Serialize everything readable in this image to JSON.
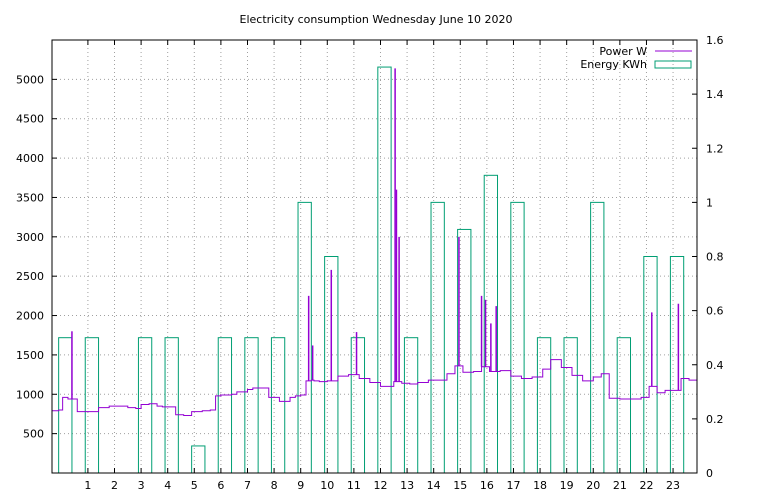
{
  "chart_data": {
    "type": "line",
    "title": "Electricity consumption Wednesday June 10 2020",
    "xlabel": "",
    "ylabel": "",
    "xlim": [
      -0.35,
      23.9
    ],
    "ylim": [
      0,
      5500
    ],
    "y2lim": [
      0,
      1.6
    ],
    "x_ticks": [
      1,
      2,
      3,
      4,
      5,
      6,
      7,
      8,
      9,
      10,
      11,
      12,
      13,
      14,
      15,
      16,
      17,
      18,
      19,
      20,
      21,
      22,
      23
    ],
    "y_ticks": [
      500,
      1000,
      1500,
      2000,
      2500,
      3000,
      3500,
      4000,
      4500,
      5000
    ],
    "y2_ticks": [
      0,
      0.2,
      0.4,
      0.6,
      0.8,
      1,
      1.2,
      1.4,
      1.6
    ],
    "y2_tick_labels": [
      "0",
      "0.2",
      "0.4",
      "0.6",
      "0.8",
      "1",
      "1.2",
      "1.4",
      "1.6"
    ],
    "grid": true,
    "legend_position": "top-right",
    "colors": {
      "power": "#9400d3",
      "energy": "#009e73"
    },
    "series": [
      {
        "name": "Power W",
        "axis": "left",
        "style": "step",
        "x": [
          -0.35,
          -0.1,
          0.05,
          0.25,
          0.6,
          1.0,
          1.4,
          1.8,
          2.2,
          2.5,
          2.8,
          3.0,
          3.3,
          3.6,
          3.8,
          4.0,
          4.3,
          4.6,
          4.9,
          5.1,
          5.3,
          5.6,
          5.8,
          6.0,
          6.2,
          6.4,
          6.6,
          6.8,
          7.0,
          7.2,
          7.4,
          7.6,
          7.8,
          8.0,
          8.2,
          8.4,
          8.6,
          8.8,
          9.0,
          9.2,
          9.4,
          9.5,
          9.7,
          10.0,
          10.4,
          10.8,
          11.2,
          11.6,
          12.0,
          12.5,
          12.8,
          13.1,
          13.4,
          13.8,
          14.2,
          14.5,
          14.8,
          15.1,
          15.5,
          15.8,
          16.1,
          16.5,
          16.9,
          17.3,
          17.7,
          18.1,
          18.4,
          18.8,
          19.2,
          19.6,
          20.0,
          20.3,
          20.6,
          21.0,
          21.4,
          21.8,
          22.1,
          22.4,
          22.7,
          23.0,
          23.3,
          23.6,
          23.9
        ],
        "values": [
          790,
          800,
          960,
          940,
          780,
          780,
          830,
          850,
          850,
          830,
          820,
          870,
          880,
          850,
          840,
          840,
          740,
          730,
          780,
          780,
          790,
          800,
          980,
          990,
          990,
          1000,
          1030,
          1030,
          1060,
          1080,
          1080,
          1080,
          960,
          960,
          910,
          910,
          960,
          980,
          990,
          1170,
          1180,
          1170,
          1160,
          1170,
          1230,
          1250,
          1200,
          1150,
          1100,
          1160,
          1140,
          1130,
          1150,
          1180,
          1180,
          1260,
          1360,
          1280,
          1290,
          1350,
          1290,
          1300,
          1230,
          1200,
          1220,
          1320,
          1440,
          1340,
          1240,
          1170,
          1220,
          1260,
          950,
          940,
          940,
          960,
          1100,
          1020,
          1050,
          1050,
          1200,
          1180,
          1150
        ]
      },
      {
        "name": "Energy KWh",
        "axis": "right",
        "style": "boxes",
        "categories": [
          0,
          1,
          2,
          3,
          4,
          5,
          6,
          7,
          8,
          9,
          10,
          11,
          12,
          13,
          14,
          15,
          16,
          17,
          18,
          19,
          20,
          21,
          22,
          23
        ],
        "values": [
          0.5,
          0.5,
          0,
          0.5,
          0.5,
          0.1,
          0.5,
          0.5,
          0.5,
          1.0,
          0.8,
          0.5,
          1.5,
          0.5,
          1.0,
          0.9,
          1.1,
          1.0,
          0.5,
          0.5,
          1.0,
          0.5,
          0.8,
          0.8
        ]
      }
    ],
    "power_spikes": [
      {
        "x": 0.4,
        "y": 1800
      },
      {
        "x": 9.3,
        "y": 2250
      },
      {
        "x": 9.45,
        "y": 1620
      },
      {
        "x": 10.15,
        "y": 2580
      },
      {
        "x": 11.1,
        "y": 1790
      },
      {
        "x": 12.55,
        "y": 5140
      },
      {
        "x": 12.6,
        "y": 3600
      },
      {
        "x": 12.7,
        "y": 3000
      },
      {
        "x": 14.95,
        "y": 3000
      },
      {
        "x": 15.8,
        "y": 2250
      },
      {
        "x": 15.95,
        "y": 2200
      },
      {
        "x": 16.15,
        "y": 1900
      },
      {
        "x": 16.35,
        "y": 2120
      },
      {
        "x": 22.2,
        "y": 2040
      },
      {
        "x": 23.2,
        "y": 2150
      }
    ]
  }
}
